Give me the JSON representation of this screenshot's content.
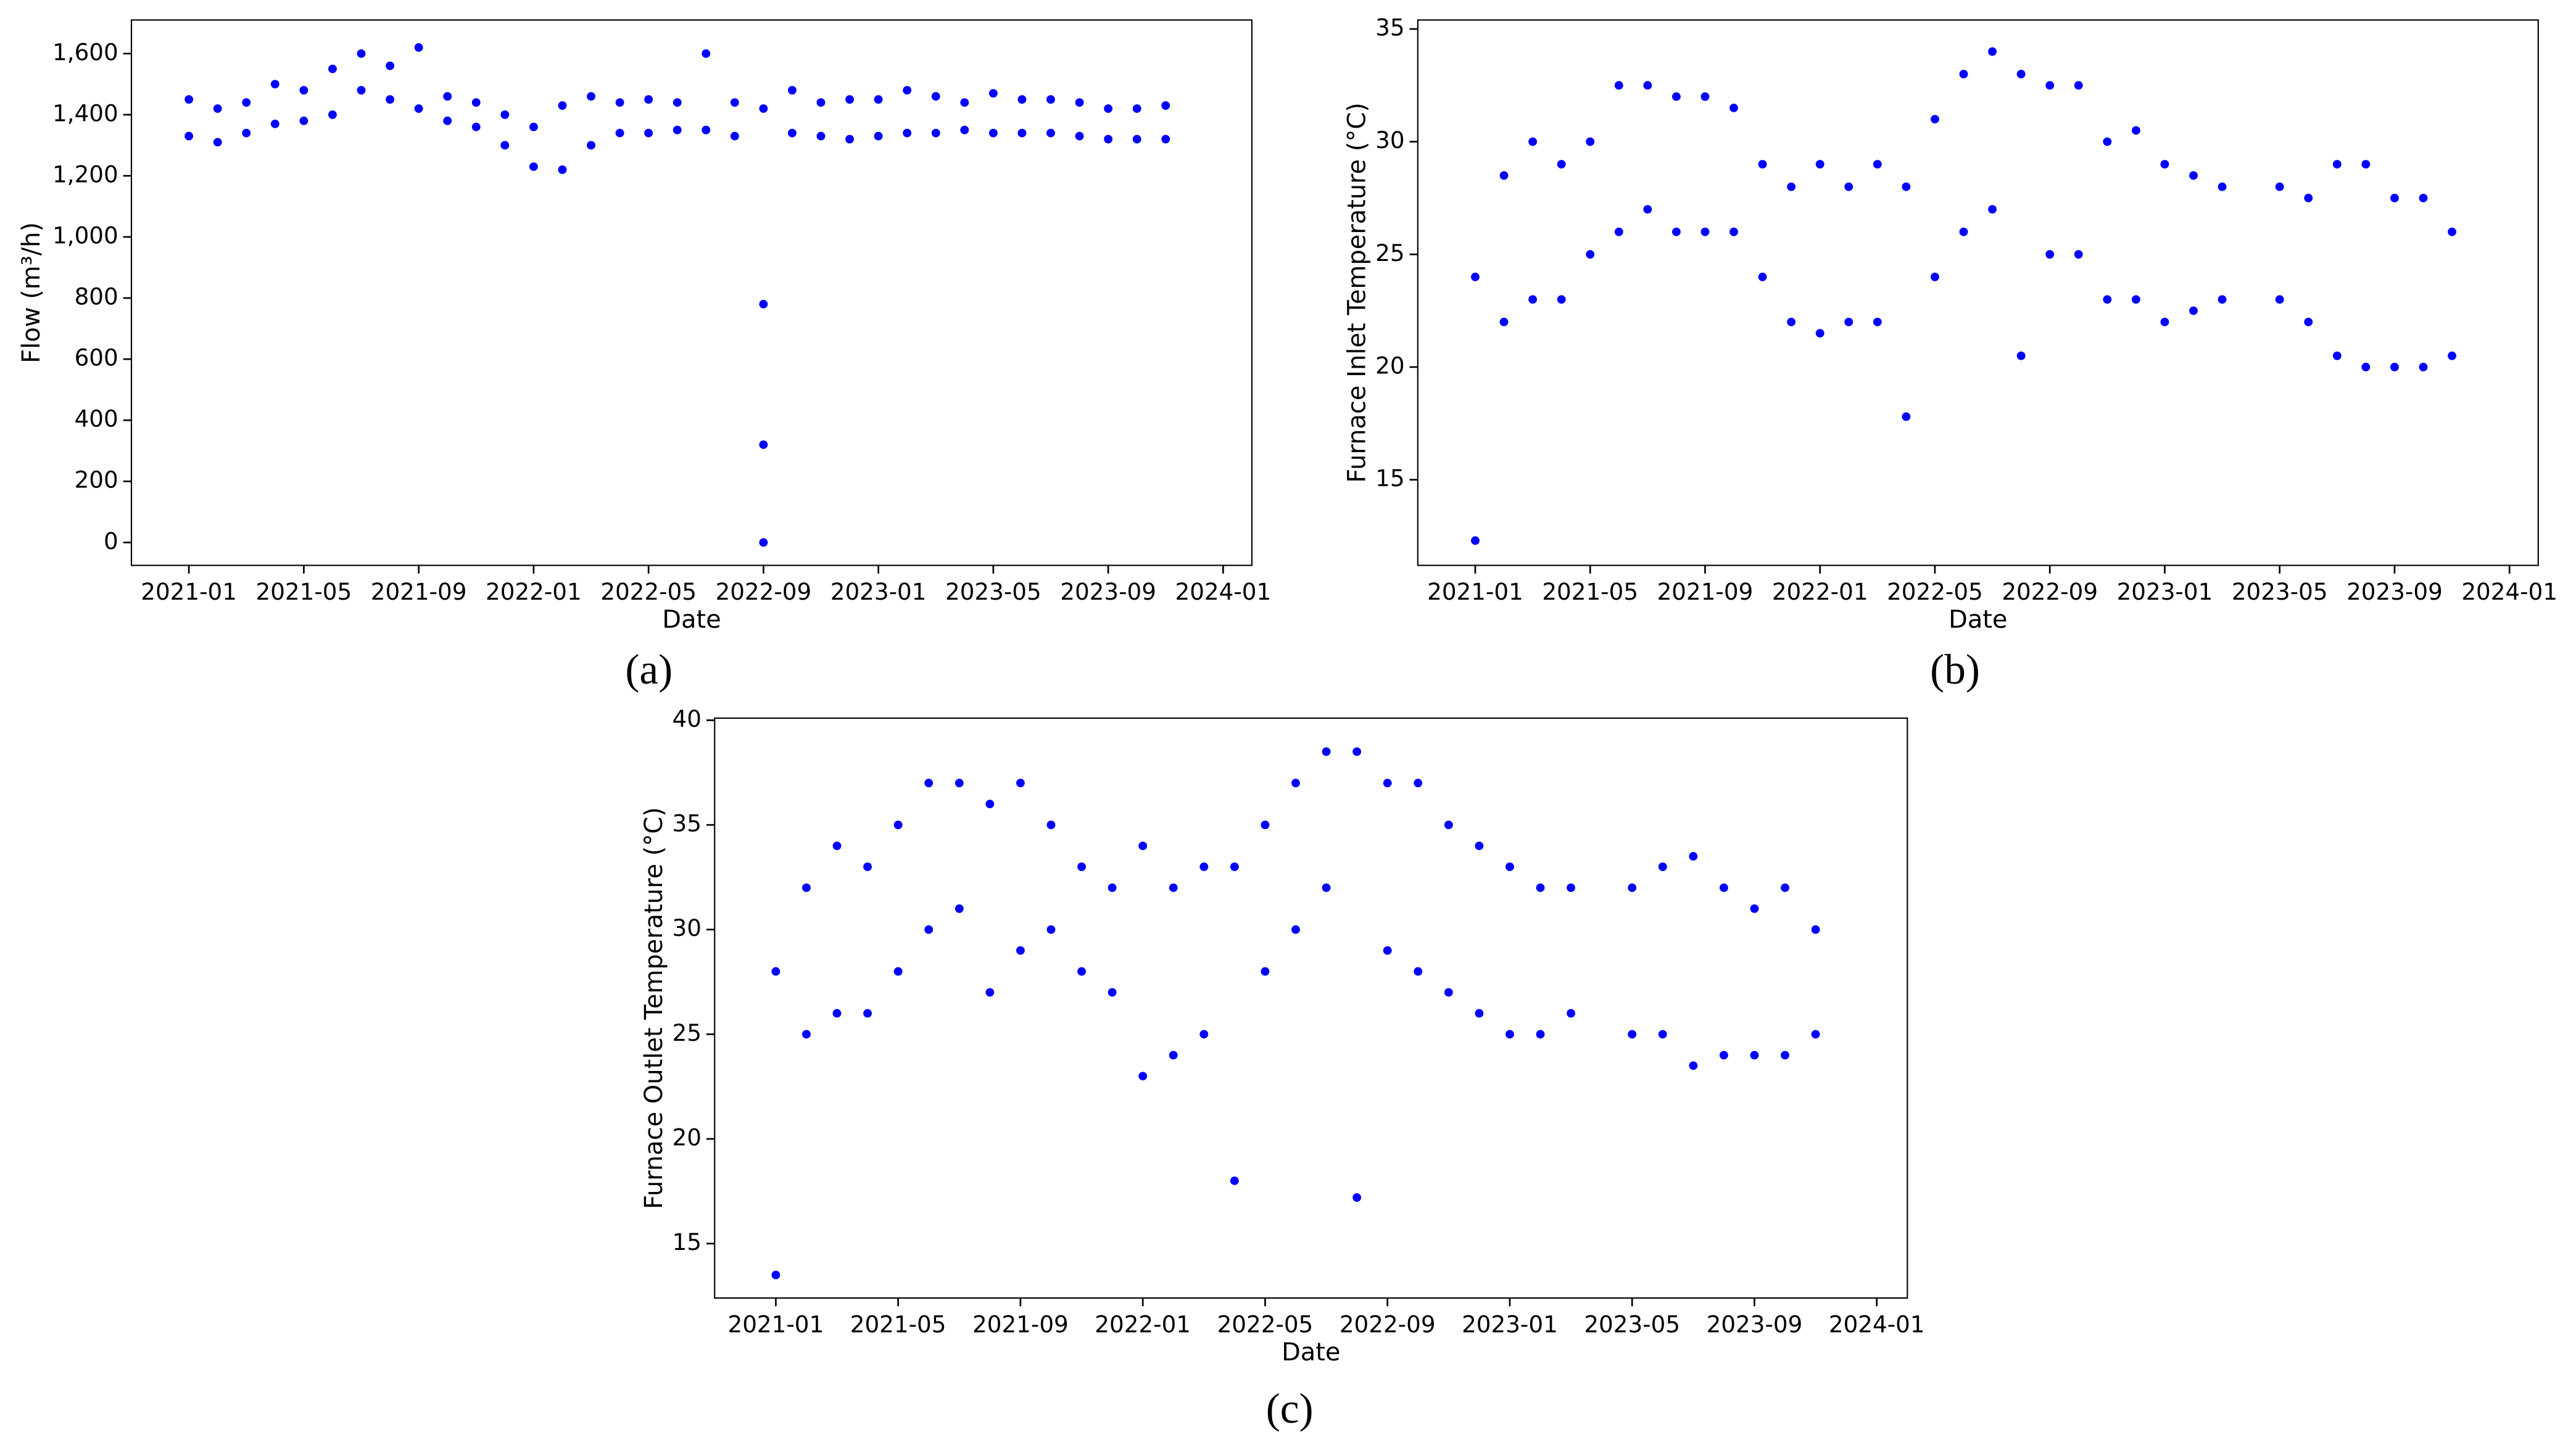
{
  "chart_data": [
    {
      "type": "scatter",
      "caption": "(a)",
      "xlabel": "Date",
      "ylabel": "Flow (m³/h)",
      "color": "#0000ff",
      "xlim": [
        "2020-11",
        "2024-02"
      ],
      "xticks": [
        "2021-01",
        "2021-05",
        "2021-09",
        "2022-01",
        "2022-05",
        "2022-09",
        "2023-01",
        "2023-05",
        "2023-09",
        "2024-01"
      ],
      "ylim": [
        -75,
        1710
      ],
      "yticks": [
        0,
        200,
        400,
        600,
        800,
        {
          "value": 1000,
          "label": "1,000"
        },
        {
          "value": 1200,
          "label": "1,200"
        },
        {
          "value": 1400,
          "label": "1,400"
        },
        {
          "value": 1600,
          "label": "1,600"
        }
      ],
      "x": [
        "2021-01",
        "2021-01",
        "2021-02",
        "2021-02",
        "2021-03",
        "2021-03",
        "2021-04",
        "2021-04",
        "2021-05",
        "2021-05",
        "2021-06",
        "2021-06",
        "2021-07",
        "2021-07",
        "2021-08",
        "2021-08",
        "2021-09",
        "2021-09",
        "2021-10",
        "2021-10",
        "2021-11",
        "2021-11",
        "2021-12",
        "2021-12",
        "2022-01",
        "2022-01",
        "2022-02",
        "2022-02",
        "2022-03",
        "2022-03",
        "2022-04",
        "2022-04",
        "2022-05",
        "2022-05",
        "2022-06",
        "2022-06",
        "2022-07",
        "2022-07",
        "2022-08",
        "2022-08",
        "2022-09",
        "2022-09",
        "2022-09",
        "2022-09",
        "2022-10",
        "2022-10",
        "2022-11",
        "2022-11",
        "2022-12",
        "2022-12",
        "2023-01",
        "2023-01",
        "2023-02",
        "2023-02",
        "2023-03",
        "2023-03",
        "2023-04",
        "2023-04",
        "2023-05",
        "2023-05",
        "2023-06",
        "2023-06",
        "2023-07",
        "2023-07",
        "2023-08",
        "2023-08",
        "2023-09",
        "2023-09",
        "2023-10",
        "2023-10",
        "2023-11",
        "2023-11"
      ],
      "values": [
        1330,
        1450,
        1310,
        1420,
        1340,
        1440,
        1370,
        1500,
        1380,
        1480,
        1400,
        1550,
        1480,
        1600,
        1450,
        1560,
        1420,
        1620,
        1380,
        1460,
        1360,
        1440,
        1300,
        1400,
        1230,
        1360,
        1220,
        1430,
        1300,
        1460,
        1340,
        1440,
        1340,
        1450,
        1350,
        1440,
        1350,
        1600,
        1330,
        1440,
        0,
        1420,
        780,
        320,
        1340,
        1480,
        1330,
        1440,
        1320,
        1450,
        1330,
        1450,
        1340,
        1480,
        1340,
        1460,
        1350,
        1440,
        1340,
        1470,
        1340,
        1450,
        1340,
        1450,
        1330,
        1440,
        1320,
        1420,
        1320,
        1420,
        1320,
        1430
      ]
    },
    {
      "type": "scatter",
      "caption": "(b)",
      "xlabel": "Date",
      "ylabel": "Furnace Inlet Temperature (°C)",
      "color": "#0000ff",
      "xlim": [
        "2020-11",
        "2024-02"
      ],
      "xticks": [
        "2021-01",
        "2021-05",
        "2021-09",
        "2022-01",
        "2022-05",
        "2022-09",
        "2023-01",
        "2023-05",
        "2023-09",
        "2024-01"
      ],
      "ylim": [
        11.2,
        35.4
      ],
      "yticks": [
        15,
        20,
        25,
        30,
        35
      ],
      "x": [
        "2021-01",
        "2021-01",
        "2021-02",
        "2021-02",
        "2021-03",
        "2021-03",
        "2021-04",
        "2021-04",
        "2021-05",
        "2021-05",
        "2021-06",
        "2021-06",
        "2021-07",
        "2021-07",
        "2021-08",
        "2021-08",
        "2021-09",
        "2021-09",
        "2021-10",
        "2021-10",
        "2021-11",
        "2021-11",
        "2021-12",
        "2021-12",
        "2022-01",
        "2022-01",
        "2022-02",
        "2022-02",
        "2022-03",
        "2022-03",
        "2022-04",
        "2022-04",
        "2022-05",
        "2022-05",
        "2022-06",
        "2022-06",
        "2022-07",
        "2022-07",
        "2022-08",
        "2022-08",
        "2022-09",
        "2022-09",
        "2022-10",
        "2022-10",
        "2022-11",
        "2022-11",
        "2022-12",
        "2022-12",
        "2023-01",
        "2023-01",
        "2023-02",
        "2023-02",
        "2023-03",
        "2023-03",
        "2023-05",
        "2023-05",
        "2023-06",
        "2023-06",
        "2023-07",
        "2023-07",
        "2023-08",
        "2023-08",
        "2023-09",
        "2023-09",
        "2023-10",
        "2023-10",
        "2023-11",
        "2023-11"
      ],
      "values": [
        12.3,
        24,
        22,
        28.5,
        23,
        30,
        23,
        29,
        25,
        30,
        26,
        32.5,
        27,
        32.5,
        26,
        32,
        26,
        32,
        26,
        31.5,
        24,
        29,
        22,
        28,
        21.5,
        29,
        22,
        28,
        22,
        29,
        17.8,
        28,
        24,
        31,
        26,
        33,
        27,
        34,
        20.5,
        33,
        25,
        32.5,
        25,
        32.5,
        23,
        30,
        23,
        30.5,
        22,
        29,
        22.5,
        28.5,
        23,
        28,
        23,
        28,
        22,
        27.5,
        20.5,
        29,
        20,
        29,
        20,
        27.5,
        20,
        27.5,
        20.5,
        26
      ]
    },
    {
      "type": "scatter",
      "caption": "(c)",
      "xlabel": "Date",
      "ylabel": "Furnace Outlet Temperature (°C)",
      "color": "#0000ff",
      "xlim": [
        "2020-11",
        "2024-02"
      ],
      "xticks": [
        "2021-01",
        "2021-05",
        "2021-09",
        "2022-01",
        "2022-05",
        "2022-09",
        "2023-01",
        "2023-05",
        "2023-09",
        "2024-01"
      ],
      "ylim": [
        12.4,
        40.1
      ],
      "yticks": [
        15,
        20,
        25,
        30,
        35,
        40
      ],
      "x": [
        "2021-01",
        "2021-01",
        "2021-02",
        "2021-02",
        "2021-03",
        "2021-03",
        "2021-04",
        "2021-04",
        "2021-05",
        "2021-05",
        "2021-06",
        "2021-06",
        "2021-07",
        "2021-07",
        "2021-08",
        "2021-08",
        "2021-09",
        "2021-09",
        "2021-10",
        "2021-10",
        "2021-11",
        "2021-11",
        "2021-12",
        "2021-12",
        "2022-01",
        "2022-01",
        "2022-02",
        "2022-02",
        "2022-03",
        "2022-03",
        "2022-04",
        "2022-04",
        "2022-05",
        "2022-05",
        "2022-06",
        "2022-06",
        "2022-07",
        "2022-07",
        "2022-08",
        "2022-08",
        "2022-09",
        "2022-09",
        "2022-10",
        "2022-10",
        "2022-11",
        "2022-11",
        "2022-12",
        "2022-12",
        "2023-01",
        "2023-01",
        "2023-02",
        "2023-02",
        "2023-03",
        "2023-03",
        "2023-05",
        "2023-05",
        "2023-06",
        "2023-06",
        "2023-07",
        "2023-07",
        "2023-08",
        "2023-08",
        "2023-09",
        "2023-09",
        "2023-10",
        "2023-10",
        "2023-11",
        "2023-11"
      ],
      "values": [
        13.5,
        28,
        25,
        32,
        26,
        34,
        26,
        33,
        28,
        35,
        30,
        37,
        31,
        37,
        27,
        36,
        29,
        37,
        30,
        35,
        28,
        33,
        27,
        32,
        23,
        34,
        24,
        32,
        25,
        33,
        18,
        33,
        28,
        35,
        30,
        37,
        32,
        38.5,
        17.2,
        38.5,
        29,
        37,
        28,
        37,
        27,
        35,
        26,
        34,
        25,
        33,
        25,
        32,
        26,
        32,
        25,
        32,
        25,
        33,
        23.5,
        33.5,
        24,
        32,
        24,
        31,
        24,
        32,
        25,
        30
      ]
    }
  ]
}
